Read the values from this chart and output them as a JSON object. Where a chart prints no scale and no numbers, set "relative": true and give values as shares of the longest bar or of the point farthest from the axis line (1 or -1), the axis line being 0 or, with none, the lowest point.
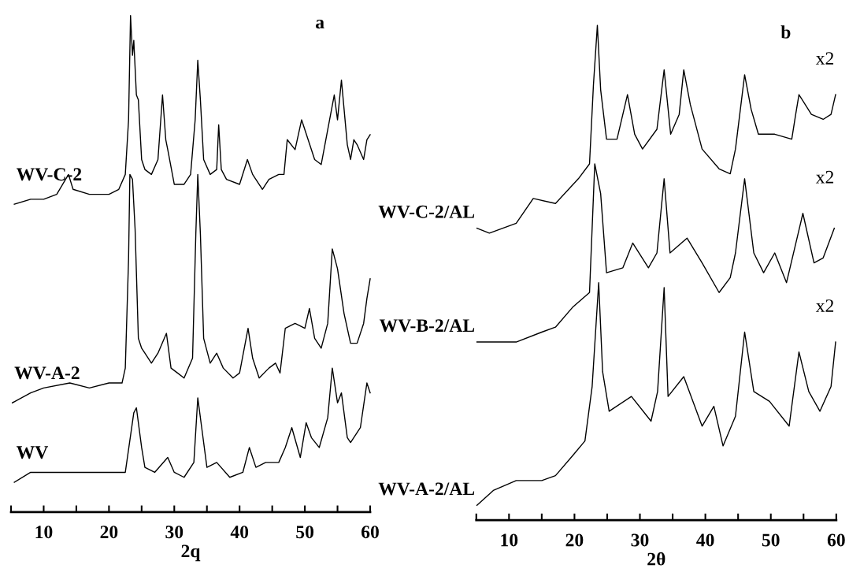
{
  "chart_data": [
    {
      "type": "line",
      "title": "a",
      "xlabel": "2q",
      "relative": true,
      "xlim": [
        5,
        60
      ],
      "xticks": [
        {
          "value": 5,
          "label": null
        },
        10,
        {
          "value": 15,
          "label": null
        },
        20,
        {
          "value": 25,
          "label": null
        },
        30,
        {
          "value": 35,
          "label": null
        },
        40,
        {
          "value": 45,
          "label": null
        },
        50,
        {
          "value": 55,
          "label": null
        },
        60
      ],
      "grid": false,
      "tick_labels": "x",
      "series": [
        {
          "name": "WV-C-2",
          "color": "#000000",
          "x": [
            5.5,
            8,
            10,
            12,
            13.8,
            14.5,
            17,
            20,
            21.5,
            22.5,
            23,
            23.3,
            23.6,
            23.8,
            24.2,
            24.5,
            25,
            25.5,
            26.5,
            27.5,
            28.2,
            28.7,
            29,
            30,
            31.5,
            32.5,
            33.2,
            33.6,
            34,
            34.5,
            35.5,
            36.5,
            36.8,
            37.2,
            38,
            40,
            41.2,
            42,
            43.5,
            44.5,
            46,
            46.8,
            47.3,
            48.5,
            49.5,
            50.5,
            51.5,
            52.5,
            53.5,
            54.5,
            55,
            55.6,
            56.5,
            57,
            57.5,
            58,
            59,
            59.5,
            60
          ],
          "values": [
            0.62,
            0.63,
            0.63,
            0.64,
            0.68,
            0.65,
            0.64,
            0.64,
            0.65,
            0.68,
            0.79,
            1,
            0.92,
            0.95,
            0.84,
            0.83,
            0.71,
            0.69,
            0.68,
            0.71,
            0.84,
            0.75,
            0.73,
            0.66,
            0.66,
            0.68,
            0.79,
            0.91,
            0.83,
            0.71,
            0.68,
            0.69,
            0.78,
            0.69,
            0.67,
            0.66,
            0.71,
            0.68,
            0.65,
            0.67,
            0.68,
            0.68,
            0.75,
            0.73,
            0.79,
            0.75,
            0.71,
            0.7,
            0.77,
            0.84,
            0.79,
            0.87,
            0.74,
            0.71,
            0.75,
            0.74,
            0.71,
            0.75,
            0.76
          ]
        },
        {
          "name": "WV-A-2",
          "color": "#000000",
          "x": [
            5.2,
            8,
            10,
            14,
            17,
            20,
            22,
            22.5,
            23,
            23.2,
            23.6,
            24,
            24.5,
            25,
            25.5,
            26.5,
            27.5,
            28.8,
            29.5,
            30.5,
            31.5,
            32.8,
            33.3,
            33.6,
            34,
            34.5,
            35.5,
            36.5,
            37.5,
            39,
            40,
            41.3,
            42,
            43,
            44.5,
            45.5,
            46.2,
            47,
            48.5,
            50,
            50.7,
            51.5,
            52.5,
            53.5,
            54.2,
            55,
            56,
            57,
            58,
            59,
            59.5,
            60
          ],
          "values": [
            0.22,
            0.24,
            0.25,
            0.26,
            0.25,
            0.26,
            0.26,
            0.29,
            0.51,
            0.68,
            0.67,
            0.57,
            0.35,
            0.33,
            0.32,
            0.3,
            0.32,
            0.36,
            0.29,
            0.28,
            0.27,
            0.31,
            0.56,
            0.68,
            0.56,
            0.35,
            0.3,
            0.32,
            0.29,
            0.27,
            0.28,
            0.37,
            0.31,
            0.27,
            0.29,
            0.3,
            0.28,
            0.37,
            0.38,
            0.37,
            0.41,
            0.35,
            0.33,
            0.38,
            0.53,
            0.49,
            0.4,
            0.34,
            0.34,
            0.38,
            0.43,
            0.47
          ]
        },
        {
          "name": "WV",
          "color": "#000000",
          "x": [
            5.5,
            8,
            10,
            12,
            15,
            18,
            21,
            22.5,
            23.8,
            24.2,
            25,
            25.5,
            27,
            29,
            30,
            31.5,
            33,
            33.6,
            34.2,
            35,
            36.5,
            38.5,
            40.5,
            41.5,
            42.5,
            44,
            46,
            47,
            48,
            49.3,
            50.2,
            51,
            52.2,
            53.5,
            54.2,
            55,
            55.6,
            56.5,
            57,
            58.5,
            59.5,
            60
          ],
          "values": [
            0.06,
            0.08,
            0.08,
            0.08,
            0.08,
            0.08,
            0.08,
            0.08,
            0.2,
            0.21,
            0.13,
            0.09,
            0.08,
            0.11,
            0.08,
            0.07,
            0.1,
            0.23,
            0.17,
            0.09,
            0.1,
            0.07,
            0.08,
            0.13,
            0.09,
            0.1,
            0.1,
            0.13,
            0.17,
            0.11,
            0.18,
            0.15,
            0.13,
            0.19,
            0.29,
            0.22,
            0.24,
            0.15,
            0.14,
            0.17,
            0.26,
            0.24
          ]
        }
      ]
    },
    {
      "type": "line",
      "title": "b",
      "xlabel": "2θ",
      "relative": true,
      "xlim": [
        5,
        60
      ],
      "xticks": [
        {
          "value": 5,
          "label": null
        },
        10,
        {
          "value": 15,
          "label": null
        },
        20,
        {
          "value": 25,
          "label": null
        },
        30,
        {
          "value": 35,
          "label": null
        },
        40,
        {
          "value": 45,
          "label": null
        },
        50,
        {
          "value": 55,
          "label": null
        },
        60
      ],
      "grid": false,
      "tick_labels": "x",
      "annotations": [
        "x2",
        "x2",
        "x2"
      ],
      "series": [
        {
          "name": "WV-C-2/AL",
          "color": "#000000",
          "x": [
            5.1,
            7,
            11.1,
            13.7,
            17.1,
            20.6,
            22.3,
            22.9,
            23.5,
            24.0,
            24.9,
            26.5,
            28.1,
            29.2,
            30.4,
            32.6,
            33.7,
            34.7,
            36.0,
            36.7,
            37.7,
            39.5,
            42.1,
            43.8,
            44.6,
            46.0,
            47.0,
            48.1,
            50.6,
            53.2,
            53.8,
            54.3,
            56.2,
            58.0,
            59.2,
            59.9
          ],
          "values": [
            0.59,
            0.58,
            0.6,
            0.65,
            0.64,
            0.69,
            0.72,
            0.88,
            1,
            0.87,
            0.77,
            0.77,
            0.86,
            0.78,
            0.75,
            0.79,
            0.91,
            0.78,
            0.82,
            0.91,
            0.84,
            0.75,
            0.71,
            0.7,
            0.75,
            0.9,
            0.83,
            0.78,
            0.78,
            0.77,
            0.82,
            0.86,
            0.82,
            0.81,
            0.82,
            0.86
          ]
        },
        {
          "name": "WV-B-2/AL",
          "color": "#000000",
          "x": [
            5.1,
            11.1,
            15.0,
            17.1,
            19.7,
            22.3,
            23.1,
            24.0,
            24.9,
            27.4,
            28.9,
            31.3,
            32.6,
            33.7,
            34.6,
            37.2,
            39.5,
            42.1,
            43.8,
            44.6,
            46.0,
            47.4,
            48.9,
            50.6,
            52.4,
            54.9,
            56.6,
            58.0,
            59.7
          ],
          "values": [
            0.36,
            0.36,
            0.38,
            0.39,
            0.43,
            0.46,
            0.72,
            0.66,
            0.5,
            0.51,
            0.56,
            0.51,
            0.54,
            0.69,
            0.54,
            0.57,
            0.52,
            0.46,
            0.49,
            0.54,
            0.69,
            0.54,
            0.5,
            0.54,
            0.48,
            0.62,
            0.52,
            0.53,
            0.59
          ]
        },
        {
          "name": "WV-A-2/AL",
          "color": "#000000",
          "x": [
            5.1,
            7.6,
            11.1,
            15.0,
            17.1,
            19.7,
            21.6,
            22.7,
            23.7,
            24.3,
            25.3,
            28.7,
            31.7,
            32.7,
            33.7,
            34.3,
            36.7,
            39.5,
            41.3,
            42.7,
            44.6,
            46.0,
            47.4,
            49.8,
            52.8,
            54.3,
            55.8,
            57.5,
            59.2,
            59.9
          ],
          "values": [
            0.03,
            0.06,
            0.08,
            0.08,
            0.09,
            0.13,
            0.16,
            0.27,
            0.48,
            0.3,
            0.22,
            0.25,
            0.2,
            0.26,
            0.47,
            0.25,
            0.29,
            0.19,
            0.23,
            0.15,
            0.21,
            0.38,
            0.26,
            0.24,
            0.19,
            0.34,
            0.26,
            0.22,
            0.27,
            0.36
          ]
        }
      ]
    }
  ]
}
